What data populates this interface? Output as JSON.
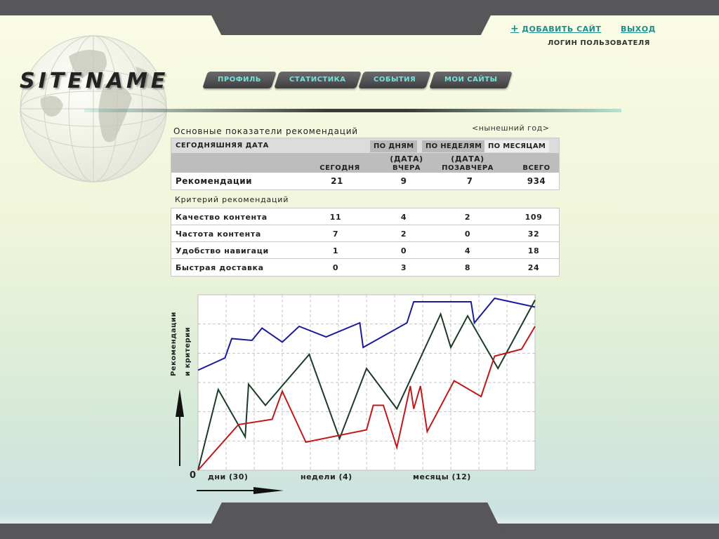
{
  "header": {
    "sitename": "SITENAME",
    "add_site": "ДОБАВИТЬ САЙТ",
    "logout": "ВЫХОД",
    "user_login": "ЛОГИН ПОЛЬЗОВАТЕЛЯ"
  },
  "nav": {
    "items": [
      {
        "label": "ПРОФИЛЬ"
      },
      {
        "label": "СТАТИСТИКА"
      },
      {
        "label": "СОБЫТИЯ"
      },
      {
        "label": "МОИ САЙТЫ"
      }
    ]
  },
  "stats": {
    "title": "Основные показатели рекомендаций",
    "period_link": "<нынешний год>",
    "date_label": "СЕГОДНЯШНЯЯ ДАТА",
    "tabs": [
      "ПО ДНЯМ",
      "ПО НЕДЕЛЯМ",
      "ПО МЕСЯЦАМ"
    ],
    "columns": {
      "today": "СЕГОДНЯ",
      "yesterday_date": "(ДАТА)",
      "yesterday": "ВЧЕРА",
      "day_before_date": "(ДАТА)",
      "day_before": "ПОЗАВЧЕРА",
      "total": "ВСЕГО"
    },
    "recommendations": {
      "label": "Рекомендации",
      "today": "21",
      "yesterday": "9",
      "day_before": "7",
      "total": "934"
    }
  },
  "criteria": {
    "title": "Критерий рекомендаций",
    "rows": [
      {
        "label": "Качество контента",
        "today": "11",
        "yesterday": "4",
        "day_before": "2",
        "total": "109"
      },
      {
        "label": "Частота контента",
        "today": "7",
        "yesterday": "2",
        "day_before": "0",
        "total": "32"
      },
      {
        "label": "Удобство навигаци",
        "today": "1",
        "yesterday": "0",
        "day_before": "4",
        "total": "18"
      },
      {
        "label": "Быстрая доставка",
        "today": "0",
        "yesterday": "3",
        "day_before": "8",
        "total": "24"
      }
    ]
  },
  "colors": {
    "accent": "#1b8d8a",
    "nav_text": "#6fe6dc",
    "series_blue": "#1a1a9a",
    "series_green": "#1c3b26",
    "series_red": "#c01818"
  },
  "chart_data": {
    "type": "line",
    "ylabel_line1": "Рекомендации",
    "ylabel_line2": "и критерии",
    "origin_label": "0",
    "x_categories": [
      "дни (30)",
      "недели (4)",
      "месяцы (12)"
    ],
    "grid": true,
    "xlim": [
      0,
      100
    ],
    "ylim": [
      0,
      100
    ],
    "series": [
      {
        "color": "#1a1a9a",
        "points": [
          [
            0,
            57
          ],
          [
            8,
            64
          ],
          [
            10,
            75
          ],
          [
            16,
            74
          ],
          [
            19,
            81
          ],
          [
            25,
            73
          ],
          [
            30,
            82
          ],
          [
            38,
            76
          ],
          [
            48,
            84
          ],
          [
            49,
            70
          ],
          [
            62,
            84
          ],
          [
            64,
            96
          ],
          [
            78,
            96
          ],
          [
            81,
            96
          ],
          [
            82,
            84
          ],
          [
            88,
            98
          ],
          [
            100,
            93
          ]
        ]
      },
      {
        "color": "#1c3b26",
        "points": [
          [
            0,
            0
          ],
          [
            6,
            46
          ],
          [
            14,
            19
          ],
          [
            15,
            49
          ],
          [
            20,
            37
          ],
          [
            33,
            66
          ],
          [
            42,
            18
          ],
          [
            50,
            58
          ],
          [
            59,
            35
          ],
          [
            72,
            89
          ],
          [
            75,
            70
          ],
          [
            80,
            88
          ],
          [
            89,
            58
          ],
          [
            100,
            97
          ]
        ]
      },
      {
        "color": "#c01818",
        "points": [
          [
            0,
            0
          ],
          [
            12,
            26
          ],
          [
            22,
            29
          ],
          [
            25,
            45
          ],
          [
            32,
            16
          ],
          [
            50,
            23
          ],
          [
            52,
            37
          ],
          [
            55,
            37
          ],
          [
            59,
            13
          ],
          [
            63,
            48
          ],
          [
            64,
            35
          ],
          [
            66,
            48
          ],
          [
            68,
            22
          ],
          [
            76,
            51
          ],
          [
            84,
            42
          ],
          [
            88,
            65
          ],
          [
            96,
            69
          ],
          [
            100,
            82
          ]
        ]
      }
    ]
  }
}
